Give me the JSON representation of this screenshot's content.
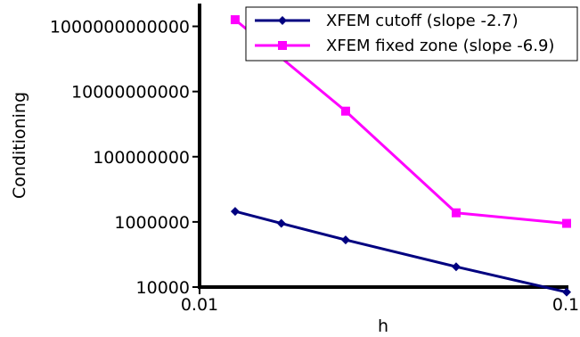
{
  "chart_data": {
    "type": "line",
    "x_scale": "log",
    "y_scale": "log",
    "xlabel": "h",
    "ylabel": "Conditioning",
    "xlim": [
      0.01,
      0.1
    ],
    "ylim": [
      10000,
      5000000000000
    ],
    "x_ticks": [
      {
        "value": 0.01,
        "label": "0.01"
      },
      {
        "value": 0.1,
        "label": "0.1"
      }
    ],
    "y_ticks": [
      {
        "value": 10000,
        "label": "10000"
      },
      {
        "value": 1000000,
        "label": "1000000"
      },
      {
        "value": 100000000,
        "label": "100000000"
      },
      {
        "value": 10000000000,
        "label": "10000000000"
      },
      {
        "value": 1000000000000,
        "label": "1000000000000"
      }
    ],
    "grid": false,
    "legend_position": "top-right",
    "series": [
      {
        "name": "XFEM cutoff (slope -2.7)",
        "color": "#000080",
        "marker": "diamond",
        "points": [
          {
            "x": 0.0125,
            "y": 2100000
          },
          {
            "x": 0.0167,
            "y": 900000
          },
          {
            "x": 0.025,
            "y": 280000
          },
          {
            "x": 0.05,
            "y": 42000
          },
          {
            "x": 0.1,
            "y": 7000
          }
        ]
      },
      {
        "name": "XFEM fixed zone (slope -6.9)",
        "color": "#ff00ff",
        "marker": "square",
        "points": [
          {
            "x": 0.0125,
            "y": 1600000000000
          },
          {
            "x": 0.025,
            "y": 2500000000
          },
          {
            "x": 0.05,
            "y": 1900000
          },
          {
            "x": 0.1,
            "y": 900000
          }
        ]
      }
    ]
  }
}
